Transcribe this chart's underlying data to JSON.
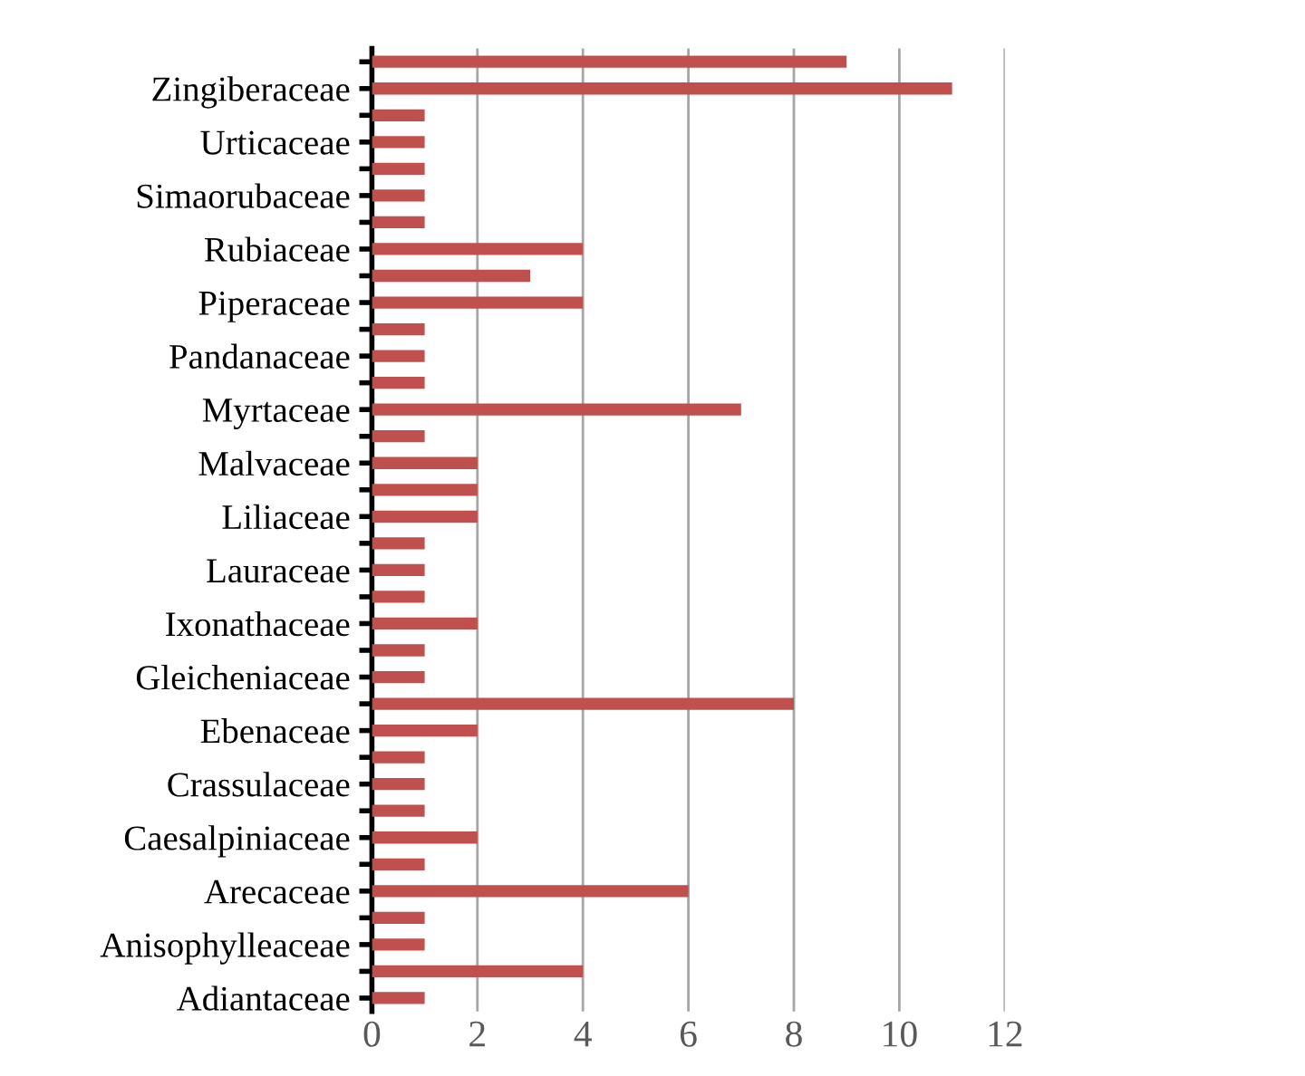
{
  "chart_data": {
    "type": "bar",
    "orientation": "horizontal",
    "categories": [
      null,
      "Zingiberaceae",
      null,
      "Urticaceae",
      null,
      "Simaorubaceae",
      null,
      "Rubiaceae",
      null,
      "Piperaceae",
      null,
      "Pandanaceae",
      null,
      "Myrtaceae",
      null,
      "Malvaceae",
      null,
      "Liliaceae",
      null,
      "Lauraceae",
      null,
      "Ixonathaceae",
      null,
      "Gleicheniaceae",
      null,
      "Ebenaceae",
      null,
      "Crassulaceae",
      null,
      "Caesalpiniaceae",
      null,
      "Arecaceae",
      null,
      "Anisophylleaceae",
      null,
      "Adiantaceae"
    ],
    "values": [
      9,
      11,
      1,
      1,
      1,
      1,
      1,
      4,
      3,
      4,
      1,
      1,
      1,
      7,
      1,
      2,
      2,
      2,
      1,
      1,
      1,
      2,
      1,
      1,
      8,
      2,
      1,
      1,
      1,
      2,
      1,
      6,
      1,
      1,
      4,
      1
    ],
    "color": "#c0504d",
    "xlim": [
      0,
      12
    ],
    "xticks": [
      0,
      2,
      4,
      6,
      8,
      10,
      12
    ],
    "grid": "x",
    "legend": false
  }
}
